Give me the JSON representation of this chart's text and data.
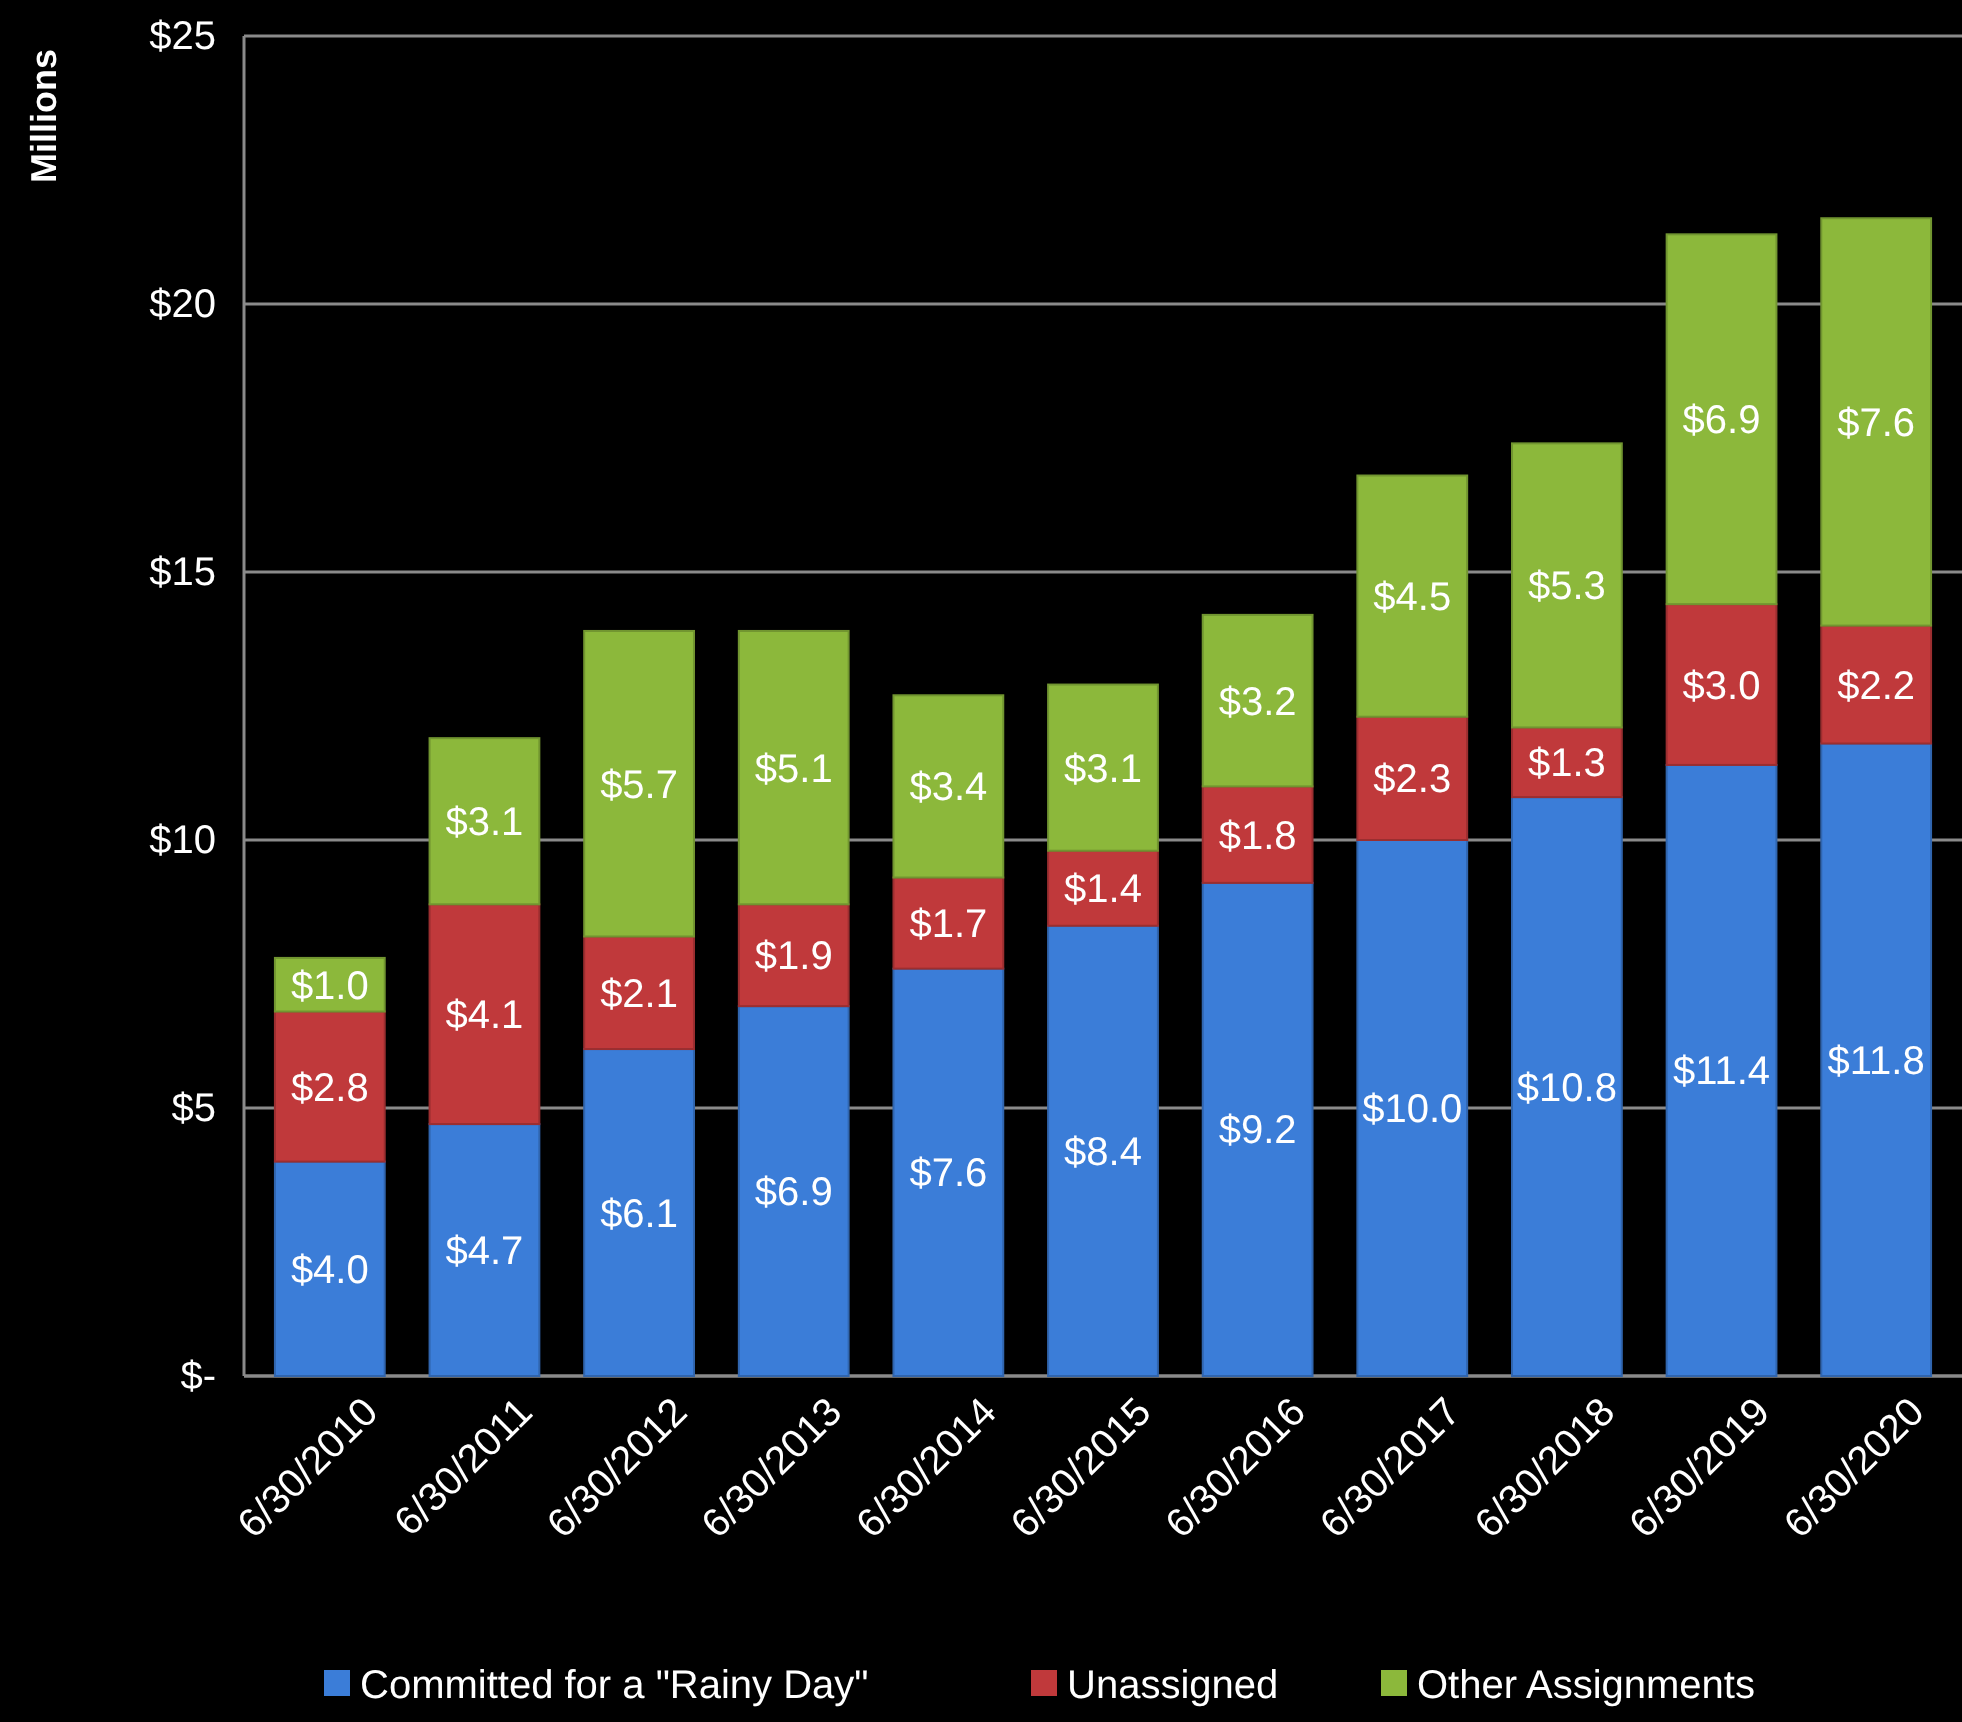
{
  "chart_data": {
    "type": "bar",
    "stacked": true,
    "ylabel": "Millions",
    "categories": [
      "6/30/2010",
      "6/30/2011",
      "6/30/2012",
      "6/30/2013",
      "6/30/2014",
      "6/30/2015",
      "6/30/2016",
      "6/30/2017",
      "6/30/2018",
      "6/30/2019",
      "6/30/2020"
    ],
    "series": [
      {
        "name": "Committed for a \"Rainy Day\"",
        "color": "#3b7dd8",
        "values": [
          4.0,
          4.7,
          6.1,
          6.9,
          7.6,
          8.4,
          9.2,
          10.0,
          10.8,
          11.4,
          11.8
        ],
        "value_labels": [
          "$4.0",
          "$4.7",
          "$6.1",
          "$6.9",
          "$7.6",
          "$8.4",
          "$9.2",
          "$10.0",
          "$10.8",
          "$11.4",
          "$11.8"
        ]
      },
      {
        "name": "Unassigned",
        "color": "#c0393b",
        "values": [
          2.8,
          4.1,
          2.1,
          1.9,
          1.7,
          1.4,
          1.8,
          2.3,
          1.3,
          3.0,
          2.2
        ],
        "value_labels": [
          "$2.8",
          "$4.1",
          "$2.1",
          "$1.9",
          "$1.7",
          "$1.4",
          "$1.8",
          "$2.3",
          "$1.3",
          "$3.0",
          "$2.2"
        ]
      },
      {
        "name": "Other Assignments",
        "color": "#8cb83b",
        "values": [
          1.0,
          3.1,
          5.7,
          5.1,
          3.4,
          3.1,
          3.2,
          4.5,
          5.3,
          6.9,
          7.6
        ],
        "value_labels": [
          "$1.0",
          "$3.1",
          "$5.7",
          "$5.1",
          "$3.4",
          "$3.1",
          "$3.2",
          "$4.5",
          "$5.3",
          "$6.9",
          "$7.6"
        ]
      }
    ],
    "ylim": [
      0,
      25
    ],
    "yticks": [
      {
        "value": 0,
        "label": "$-"
      },
      {
        "value": 5,
        "label": "$5"
      },
      {
        "value": 10,
        "label": "$10"
      },
      {
        "value": 15,
        "label": "$15"
      },
      {
        "value": 20,
        "label": "$20"
      },
      {
        "value": 25,
        "label": "$25"
      }
    ],
    "grid": "y",
    "legend": "bottom"
  }
}
